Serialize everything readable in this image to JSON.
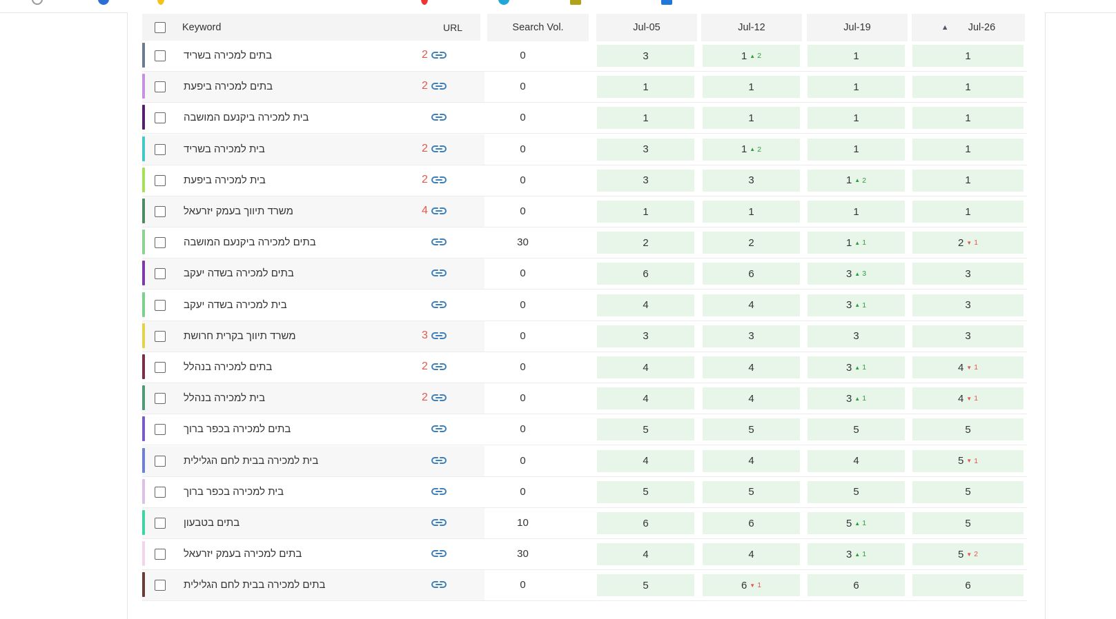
{
  "header": {
    "keyword_label": "Keyword",
    "url_label": "URL",
    "volume_label": "Search Vol.",
    "dates": [
      "Jul-05",
      "Jul-12",
      "Jul-19",
      "Jul-26"
    ],
    "sorted_column": "Jul-26"
  },
  "colors": {
    "rank_cell_bg": "#e8f6ea",
    "url_count": "#e2584d",
    "change_up": "#2a9d3c",
    "change_down": "#e2584d",
    "link_icon": "#3d7fb8"
  },
  "rows": [
    {
      "keyword": "בתים למכירה בשריד",
      "url_count": "2",
      "volume": "0",
      "color": "#6c7a93",
      "ranks": [
        {
          "v": "3"
        },
        {
          "v": "1",
          "chg": "2",
          "dir": "up"
        },
        {
          "v": "1"
        },
        {
          "v": "1"
        }
      ]
    },
    {
      "keyword": "בתים למכירה ביפעת",
      "url_count": "2",
      "volume": "0",
      "color": "#c98fe0",
      "ranks": [
        {
          "v": "1"
        },
        {
          "v": "1"
        },
        {
          "v": "1"
        },
        {
          "v": "1"
        }
      ]
    },
    {
      "keyword": "בית למכירה ביקנעם המושבה",
      "url_count": "",
      "volume": "0",
      "color": "#5a1f6b",
      "ranks": [
        {
          "v": "1"
        },
        {
          "v": "1"
        },
        {
          "v": "1"
        },
        {
          "v": "1"
        }
      ]
    },
    {
      "keyword": "בית למכירה בשריד",
      "url_count": "2",
      "volume": "0",
      "color": "#44c7c9",
      "ranks": [
        {
          "v": "3"
        },
        {
          "v": "1",
          "chg": "2",
          "dir": "up"
        },
        {
          "v": "1"
        },
        {
          "v": "1"
        }
      ]
    },
    {
      "keyword": "בית למכירה ביפעת",
      "url_count": "2",
      "volume": "0",
      "color": "#a6e05a",
      "ranks": [
        {
          "v": "3"
        },
        {
          "v": "3"
        },
        {
          "v": "1",
          "chg": "2",
          "dir": "up"
        },
        {
          "v": "1"
        }
      ]
    },
    {
      "keyword": "משרד תיווך בעמק יזרעאל",
      "url_count": "4",
      "volume": "0",
      "color": "#4f8a66",
      "ranks": [
        {
          "v": "1"
        },
        {
          "v": "1"
        },
        {
          "v": "1"
        },
        {
          "v": "1"
        }
      ]
    },
    {
      "keyword": "בתים למכירה ביקנעם המושבה",
      "url_count": "",
      "volume": "30",
      "color": "#8fcf8f",
      "ranks": [
        {
          "v": "2"
        },
        {
          "v": "2"
        },
        {
          "v": "1",
          "chg": "1",
          "dir": "up"
        },
        {
          "v": "2",
          "chg": "1",
          "dir": "down"
        }
      ]
    },
    {
      "keyword": "בתים למכירה בשדה יעקב",
      "url_count": "",
      "volume": "0",
      "color": "#7e3aa8",
      "ranks": [
        {
          "v": "6"
        },
        {
          "v": "6"
        },
        {
          "v": "3",
          "chg": "3",
          "dir": "up"
        },
        {
          "v": "3"
        }
      ]
    },
    {
      "keyword": "בית למכירה בשדה יעקב",
      "url_count": "",
      "volume": "0",
      "color": "#7ed18a",
      "ranks": [
        {
          "v": "4"
        },
        {
          "v": "4"
        },
        {
          "v": "3",
          "chg": "1",
          "dir": "up"
        },
        {
          "v": "3"
        }
      ]
    },
    {
      "keyword": "משרד תיווך בקרית חרושת",
      "url_count": "3",
      "volume": "0",
      "color": "#e3d24a",
      "ranks": [
        {
          "v": "3"
        },
        {
          "v": "3"
        },
        {
          "v": "3"
        },
        {
          "v": "3"
        }
      ]
    },
    {
      "keyword": "בתים למכירה בנהלל",
      "url_count": "2",
      "volume": "0",
      "color": "#7a2e4c",
      "ranks": [
        {
          "v": "4"
        },
        {
          "v": "4"
        },
        {
          "v": "3",
          "chg": "1",
          "dir": "up"
        },
        {
          "v": "4",
          "chg": "1",
          "dir": "down"
        }
      ]
    },
    {
      "keyword": "בית למכירה בנהלל",
      "url_count": "2",
      "volume": "0",
      "color": "#4f9a74",
      "ranks": [
        {
          "v": "4"
        },
        {
          "v": "4"
        },
        {
          "v": "3",
          "chg": "1",
          "dir": "up"
        },
        {
          "v": "4",
          "chg": "1",
          "dir": "down"
        }
      ]
    },
    {
      "keyword": "בתים למכירה בכפר ברוך",
      "url_count": "",
      "volume": "0",
      "color": "#7a5ac9",
      "ranks": [
        {
          "v": "5"
        },
        {
          "v": "5"
        },
        {
          "v": "5"
        },
        {
          "v": "5"
        }
      ]
    },
    {
      "keyword": "בית למכירה בבית לחם הגלילית",
      "url_count": "",
      "volume": "0",
      "color": "#6f7fd6",
      "ranks": [
        {
          "v": "4"
        },
        {
          "v": "4"
        },
        {
          "v": "4"
        },
        {
          "v": "5",
          "chg": "1",
          "dir": "down"
        }
      ]
    },
    {
      "keyword": "בית למכירה בכפר ברוך",
      "url_count": "",
      "volume": "0",
      "color": "#dcc0e6",
      "ranks": [
        {
          "v": "5"
        },
        {
          "v": "5"
        },
        {
          "v": "5"
        },
        {
          "v": "5"
        }
      ]
    },
    {
      "keyword": "בתים בטבעון",
      "url_count": "",
      "volume": "10",
      "color": "#3fd3a8",
      "ranks": [
        {
          "v": "6"
        },
        {
          "v": "6"
        },
        {
          "v": "5",
          "chg": "1",
          "dir": "up"
        },
        {
          "v": "5"
        }
      ]
    },
    {
      "keyword": "בתים למכירה בעמק יזרעאל",
      "url_count": "",
      "volume": "30",
      "color": "#f3d6ec",
      "ranks": [
        {
          "v": "4"
        },
        {
          "v": "4"
        },
        {
          "v": "3",
          "chg": "1",
          "dir": "up"
        },
        {
          "v": "5",
          "chg": "2",
          "dir": "down"
        }
      ]
    },
    {
      "keyword": "בתים למכירה בבית לחם הגלילית",
      "url_count": "",
      "volume": "0",
      "color": "#6b3a3a",
      "ranks": [
        {
          "v": "5"
        },
        {
          "v": "6",
          "chg": "1",
          "dir": "down"
        },
        {
          "v": "6"
        },
        {
          "v": "6"
        }
      ]
    }
  ]
}
